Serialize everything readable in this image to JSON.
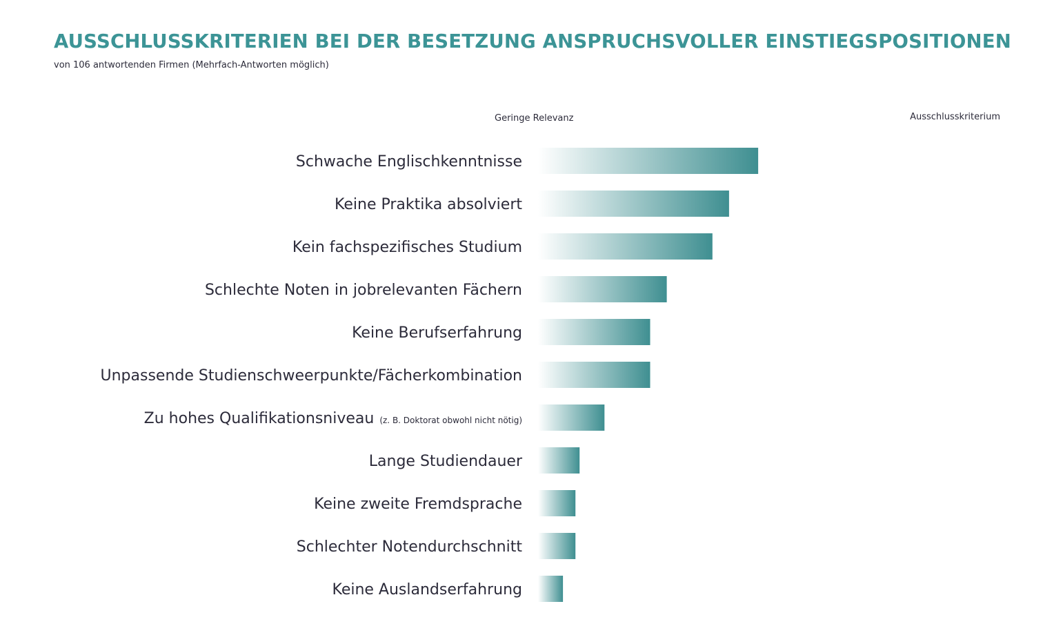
{
  "chart_data": {
    "type": "bar",
    "orientation": "horizontal",
    "title": "AUSSCHLUSSKRITERIEN BEI DER BESETZUNG ANSPRUCHSVOLLER EINSTIEGSPOSITIONEN",
    "subtitle": "von 106 antwortenden Firmen (Mehrfach-Antworten möglich)",
    "scale": {
      "min_label": "Geringe Relevanz",
      "max_label": "Ausschlusskriterium"
    },
    "xlim": [
      0,
      1
    ],
    "categories": [
      "Schwache Englischkenntnisse",
      "Keine Praktika absolviert",
      "Kein fachspezifisches Studium",
      "Schlechte Noten in jobrelevanten Fächern",
      "Keine Berufserfahrung",
      "Unpassende Studienschweerpunkte/Fächerkombination",
      "Zu hohes Qualifikationsniveau",
      "Lange Studiendauer",
      "Keine zweite Fremdsprache",
      "Schlechter Notendurchschnitt",
      "Keine Auslandserfahrung"
    ],
    "category_notes": [
      "",
      "",
      "",
      "",
      "",
      "",
      "(z. B. Doktorat obwohl nicht nötig)",
      "",
      "",
      "",
      ""
    ],
    "values": [
      0.53,
      0.46,
      0.42,
      0.31,
      0.27,
      0.27,
      0.16,
      0.1,
      0.09,
      0.09,
      0.06
    ],
    "grid": false,
    "legend": "none",
    "colors": {
      "bar": "#3f8f91",
      "bar_fade": "#ffffff",
      "title": "#3c9496",
      "text": "#2c2b3a",
      "scale_line_start": "#3a3a7a",
      "scale_line_end": "#8a1f3a"
    }
  }
}
